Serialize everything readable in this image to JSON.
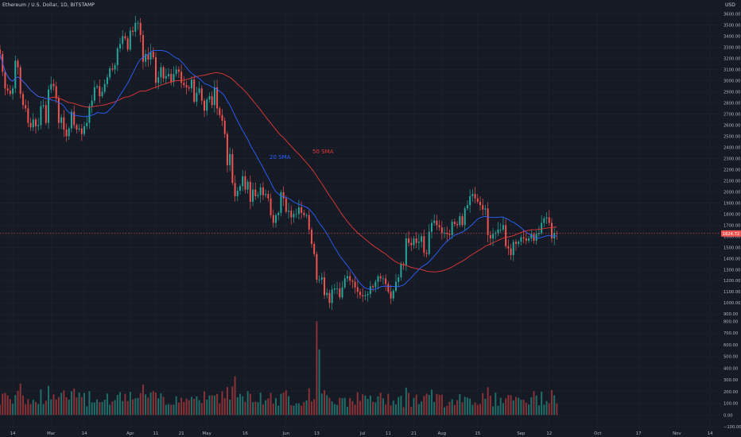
{
  "header": {
    "symbol_title": "Ethereum / U.S. Dollar, 1D, BITSTAMP",
    "currency": "USD"
  },
  "colors": {
    "background": "#161a25",
    "grid": "#1f2330",
    "text": "#b2b5be",
    "up": "#26a69a",
    "down": "#ef5350",
    "volume_up": "#1f6f68",
    "volume_down": "#8a3236",
    "sma20": "#2962ff",
    "sma50": "#e53935"
  },
  "chart_data": {
    "type": "candlestick",
    "price_axis": {
      "ticks": [
        3600,
        3500,
        3400,
        3300,
        3200,
        3100,
        3000,
        2900,
        2800,
        2700,
        2600,
        2500,
        2400,
        2300,
        2200,
        2100,
        2000,
        1900,
        1800,
        1700,
        1600,
        1500,
        1400,
        1300,
        1200,
        1100,
        1000,
        900
      ],
      "tick_labels": [
        "3600.00",
        "3500.00",
        "3400.00",
        "3300.00",
        "3200.00",
        "3100.00",
        "3000.00",
        "2900.00",
        "2800.00",
        "2700.00",
        "2600.00",
        "2500.00",
        "2400.00",
        "2300.00",
        "2200.00",
        "2100.00",
        "2000.00",
        "1900.00",
        "1800.00",
        "1700.00",
        "1600.00",
        "1500.00",
        "1400.00",
        "1300.00",
        "1200.00",
        "1100.00",
        "1000.00",
        "900.00"
      ],
      "range": [
        880,
        3640
      ]
    },
    "volume_axis": {
      "ticks": [
        800,
        700,
        600,
        500,
        400,
        300,
        200,
        100,
        0,
        -100
      ],
      "tick_labels": [
        "800.00",
        "700.00",
        "600.00",
        "500.00",
        "400.00",
        "300.00",
        "200.00",
        "100.00",
        "0.00",
        "−100.00"
      ],
      "range": [
        -120,
        830
      ]
    },
    "time_axis": {
      "labels": [
        {
          "date": "2022-02-14",
          "label": "14"
        },
        {
          "date": "2022-03-01",
          "label": "Mar"
        },
        {
          "date": "2022-03-14",
          "label": "14"
        },
        {
          "date": "2022-04-01",
          "label": "Apr"
        },
        {
          "date": "2022-04-11",
          "label": "11"
        },
        {
          "date": "2022-04-21",
          "label": "21"
        },
        {
          "date": "2022-05-01",
          "label": "May"
        },
        {
          "date": "2022-05-16",
          "label": "16"
        },
        {
          "date": "2022-06-01",
          "label": "Jun"
        },
        {
          "date": "2022-06-13",
          "label": "13"
        },
        {
          "date": "2022-07-01",
          "label": "Jul"
        },
        {
          "date": "2022-07-11",
          "label": "11"
        },
        {
          "date": "2022-07-21",
          "label": "21"
        },
        {
          "date": "2022-08-01",
          "label": "Aug"
        },
        {
          "date": "2022-08-15",
          "label": "15"
        },
        {
          "date": "2022-09-01",
          "label": "Sep"
        },
        {
          "date": "2022-09-12",
          "label": "12"
        },
        {
          "date": "2022-10-01",
          "label": "Oct"
        },
        {
          "date": "2022-10-17",
          "label": "17"
        },
        {
          "date": "2022-11-01",
          "label": "Nov"
        },
        {
          "date": "2022-11-14",
          "label": "14"
        }
      ]
    },
    "close_series": [
      {
        "date": "2022-02-09",
        "close": 3240
      },
      {
        "date": "2022-02-10",
        "close": 3080
      },
      {
        "date": "2022-02-11",
        "close": 2930
      },
      {
        "date": "2022-02-12",
        "close": 2910
      },
      {
        "date": "2022-02-13",
        "close": 2880
      },
      {
        "date": "2022-02-14",
        "close": 2930
      },
      {
        "date": "2022-02-15",
        "close": 3180
      },
      {
        "date": "2022-02-16",
        "close": 3120
      },
      {
        "date": "2022-02-17",
        "close": 2880
      },
      {
        "date": "2022-02-18",
        "close": 2780
      },
      {
        "date": "2022-02-19",
        "close": 2750
      },
      {
        "date": "2022-02-20",
        "close": 2620
      },
      {
        "date": "2022-02-21",
        "close": 2580
      },
      {
        "date": "2022-02-22",
        "close": 2650
      },
      {
        "date": "2022-02-23",
        "close": 2590
      },
      {
        "date": "2022-02-24",
        "close": 2600
      },
      {
        "date": "2022-02-25",
        "close": 2770
      },
      {
        "date": "2022-02-26",
        "close": 2780
      },
      {
        "date": "2022-02-27",
        "close": 2620
      },
      {
        "date": "2022-02-28",
        "close": 2920
      },
      {
        "date": "2022-03-01",
        "close": 2970
      },
      {
        "date": "2022-03-02",
        "close": 2950
      },
      {
        "date": "2022-03-03",
        "close": 2840
      },
      {
        "date": "2022-03-04",
        "close": 2620
      },
      {
        "date": "2022-03-05",
        "close": 2670
      },
      {
        "date": "2022-03-06",
        "close": 2560
      },
      {
        "date": "2022-03-07",
        "close": 2500
      },
      {
        "date": "2022-03-08",
        "close": 2570
      },
      {
        "date": "2022-03-09",
        "close": 2720
      },
      {
        "date": "2022-03-10",
        "close": 2600
      },
      {
        "date": "2022-03-11",
        "close": 2560
      },
      {
        "date": "2022-03-12",
        "close": 2570
      },
      {
        "date": "2022-03-13",
        "close": 2520
      },
      {
        "date": "2022-03-14",
        "close": 2590
      },
      {
        "date": "2022-03-15",
        "close": 2620
      },
      {
        "date": "2022-03-16",
        "close": 2770
      },
      {
        "date": "2022-03-17",
        "close": 2820
      },
      {
        "date": "2022-03-18",
        "close": 2940
      },
      {
        "date": "2022-03-19",
        "close": 2950
      },
      {
        "date": "2022-03-20",
        "close": 2860
      },
      {
        "date": "2022-03-21",
        "close": 2900
      },
      {
        "date": "2022-03-22",
        "close": 2970
      },
      {
        "date": "2022-03-23",
        "close": 3030
      },
      {
        "date": "2022-03-24",
        "close": 3110
      },
      {
        "date": "2022-03-25",
        "close": 3100
      },
      {
        "date": "2022-03-26",
        "close": 3140
      },
      {
        "date": "2022-03-27",
        "close": 3290
      },
      {
        "date": "2022-03-28",
        "close": 3330
      },
      {
        "date": "2022-03-29",
        "close": 3400
      },
      {
        "date": "2022-03-30",
        "close": 3380
      },
      {
        "date": "2022-03-31",
        "close": 3280
      },
      {
        "date": "2022-04-01",
        "close": 3450
      },
      {
        "date": "2022-04-02",
        "close": 3440
      },
      {
        "date": "2022-04-03",
        "close": 3520
      },
      {
        "date": "2022-04-04",
        "close": 3520
      },
      {
        "date": "2022-04-05",
        "close": 3410
      },
      {
        "date": "2022-04-06",
        "close": 3170
      },
      {
        "date": "2022-04-07",
        "close": 3240
      },
      {
        "date": "2022-04-08",
        "close": 3190
      },
      {
        "date": "2022-04-09",
        "close": 3260
      },
      {
        "date": "2022-04-10",
        "close": 3210
      },
      {
        "date": "2022-04-11",
        "close": 2980
      },
      {
        "date": "2022-04-12",
        "close": 3030
      },
      {
        "date": "2022-04-13",
        "close": 3120
      },
      {
        "date": "2022-04-14",
        "close": 3020
      },
      {
        "date": "2022-04-15",
        "close": 3040
      },
      {
        "date": "2022-04-16",
        "close": 3060
      },
      {
        "date": "2022-04-17",
        "close": 2990
      },
      {
        "date": "2022-04-18",
        "close": 3060
      },
      {
        "date": "2022-04-19",
        "close": 3100
      },
      {
        "date": "2022-04-20",
        "close": 3080
      },
      {
        "date": "2022-04-21",
        "close": 2980
      },
      {
        "date": "2022-04-22",
        "close": 2960
      },
      {
        "date": "2022-04-23",
        "close": 2940
      },
      {
        "date": "2022-04-24",
        "close": 2930
      },
      {
        "date": "2022-04-25",
        "close": 3010
      },
      {
        "date": "2022-04-26",
        "close": 2810
      },
      {
        "date": "2022-04-27",
        "close": 2890
      },
      {
        "date": "2022-04-28",
        "close": 2930
      },
      {
        "date": "2022-04-29",
        "close": 2820
      },
      {
        "date": "2022-04-30",
        "close": 2730
      },
      {
        "date": "2022-05-01",
        "close": 2830
      },
      {
        "date": "2022-05-02",
        "close": 2860
      },
      {
        "date": "2022-05-03",
        "close": 2780
      },
      {
        "date": "2022-05-04",
        "close": 2940
      },
      {
        "date": "2022-05-05",
        "close": 2750
      },
      {
        "date": "2022-05-06",
        "close": 2690
      },
      {
        "date": "2022-05-07",
        "close": 2640
      },
      {
        "date": "2022-05-08",
        "close": 2520
      },
      {
        "date": "2022-05-09",
        "close": 2240
      },
      {
        "date": "2022-05-10",
        "close": 2340
      },
      {
        "date": "2022-05-11",
        "close": 2080
      },
      {
        "date": "2022-05-12",
        "close": 1960
      },
      {
        "date": "2022-05-13",
        "close": 2010
      },
      {
        "date": "2022-05-14",
        "close": 2050
      },
      {
        "date": "2022-05-15",
        "close": 2140
      },
      {
        "date": "2022-05-16",
        "close": 2020
      },
      {
        "date": "2022-05-17",
        "close": 2090
      },
      {
        "date": "2022-05-18",
        "close": 1910
      },
      {
        "date": "2022-05-19",
        "close": 2020
      },
      {
        "date": "2022-05-20",
        "close": 1960
      },
      {
        "date": "2022-05-21",
        "close": 1970
      },
      {
        "date": "2022-05-22",
        "close": 2040
      },
      {
        "date": "2022-05-23",
        "close": 1970
      },
      {
        "date": "2022-05-24",
        "close": 1980
      },
      {
        "date": "2022-05-25",
        "close": 1940
      },
      {
        "date": "2022-05-26",
        "close": 1790
      },
      {
        "date": "2022-05-27",
        "close": 1720
      },
      {
        "date": "2022-05-28",
        "close": 1790
      },
      {
        "date": "2022-05-29",
        "close": 1810
      },
      {
        "date": "2022-05-30",
        "close": 1995
      },
      {
        "date": "2022-05-31",
        "close": 1940
      },
      {
        "date": "2022-06-01",
        "close": 1820
      },
      {
        "date": "2022-06-02",
        "close": 1830
      },
      {
        "date": "2022-06-03",
        "close": 1770
      },
      {
        "date": "2022-06-04",
        "close": 1800
      },
      {
        "date": "2022-06-05",
        "close": 1800
      },
      {
        "date": "2022-06-06",
        "close": 1860
      },
      {
        "date": "2022-06-07",
        "close": 1810
      },
      {
        "date": "2022-06-08",
        "close": 1790
      },
      {
        "date": "2022-06-09",
        "close": 1790
      },
      {
        "date": "2022-06-10",
        "close": 1660
      },
      {
        "date": "2022-06-11",
        "close": 1530
      },
      {
        "date": "2022-06-12",
        "close": 1440
      },
      {
        "date": "2022-06-13",
        "close": 1210
      },
      {
        "date": "2022-06-14",
        "close": 1210
      },
      {
        "date": "2022-06-15",
        "close": 1230
      },
      {
        "date": "2022-06-16",
        "close": 1070
      },
      {
        "date": "2022-06-17",
        "close": 1090
      },
      {
        "date": "2022-06-18",
        "close": 1000
      },
      {
        "date": "2022-06-19",
        "close": 1120
      },
      {
        "date": "2022-06-20",
        "close": 1130
      },
      {
        "date": "2022-06-21",
        "close": 1130
      },
      {
        "date": "2022-06-22",
        "close": 1050
      },
      {
        "date": "2022-06-23",
        "close": 1140
      },
      {
        "date": "2022-06-24",
        "close": 1220
      },
      {
        "date": "2022-06-25",
        "close": 1240
      },
      {
        "date": "2022-06-26",
        "close": 1200
      },
      {
        "date": "2022-06-27",
        "close": 1190
      },
      {
        "date": "2022-06-28",
        "close": 1140
      },
      {
        "date": "2022-06-29",
        "close": 1100
      },
      {
        "date": "2022-06-30",
        "close": 1070
      },
      {
        "date": "2022-07-01",
        "close": 1060
      },
      {
        "date": "2022-07-02",
        "close": 1070
      },
      {
        "date": "2022-07-03",
        "close": 1080
      },
      {
        "date": "2022-07-04",
        "close": 1150
      },
      {
        "date": "2022-07-05",
        "close": 1140
      },
      {
        "date": "2022-07-06",
        "close": 1190
      },
      {
        "date": "2022-07-07",
        "close": 1240
      },
      {
        "date": "2022-07-08",
        "close": 1220
      },
      {
        "date": "2022-07-09",
        "close": 1220
      },
      {
        "date": "2022-07-10",
        "close": 1170
      },
      {
        "date": "2022-07-11",
        "close": 1100
      },
      {
        "date": "2022-07-12",
        "close": 1040
      },
      {
        "date": "2022-07-13",
        "close": 1110
      },
      {
        "date": "2022-07-14",
        "close": 1190
      },
      {
        "date": "2022-07-15",
        "close": 1230
      },
      {
        "date": "2022-07-16",
        "close": 1350
      },
      {
        "date": "2022-07-17",
        "close": 1340
      },
      {
        "date": "2022-07-18",
        "close": 1580
      },
      {
        "date": "2022-07-19",
        "close": 1540
      },
      {
        "date": "2022-07-20",
        "close": 1520
      },
      {
        "date": "2022-07-21",
        "close": 1580
      },
      {
        "date": "2022-07-22",
        "close": 1540
      },
      {
        "date": "2022-07-23",
        "close": 1550
      },
      {
        "date": "2022-07-24",
        "close": 1600
      },
      {
        "date": "2022-07-25",
        "close": 1450
      },
      {
        "date": "2022-07-26",
        "close": 1440
      },
      {
        "date": "2022-07-27",
        "close": 1640
      },
      {
        "date": "2022-07-28",
        "close": 1720
      },
      {
        "date": "2022-07-29",
        "close": 1740
      },
      {
        "date": "2022-07-30",
        "close": 1700
      },
      {
        "date": "2022-07-31",
        "close": 1680
      },
      {
        "date": "2022-08-01",
        "close": 1630
      },
      {
        "date": "2022-08-02",
        "close": 1630
      },
      {
        "date": "2022-08-03",
        "close": 1620
      },
      {
        "date": "2022-08-04",
        "close": 1610
      },
      {
        "date": "2022-08-05",
        "close": 1730
      },
      {
        "date": "2022-08-06",
        "close": 1710
      },
      {
        "date": "2022-08-07",
        "close": 1700
      },
      {
        "date": "2022-08-08",
        "close": 1780
      },
      {
        "date": "2022-08-09",
        "close": 1700
      },
      {
        "date": "2022-08-10",
        "close": 1850
      },
      {
        "date": "2022-08-11",
        "close": 1880
      },
      {
        "date": "2022-08-12",
        "close": 1960
      },
      {
        "date": "2022-08-13",
        "close": 1980
      },
      {
        "date": "2022-08-14",
        "close": 1940
      },
      {
        "date": "2022-08-15",
        "close": 1910
      },
      {
        "date": "2022-08-16",
        "close": 1880
      },
      {
        "date": "2022-08-17",
        "close": 1840
      },
      {
        "date": "2022-08-18",
        "close": 1850
      },
      {
        "date": "2022-08-19",
        "close": 1610
      },
      {
        "date": "2022-08-20",
        "close": 1580
      },
      {
        "date": "2022-08-21",
        "close": 1620
      },
      {
        "date": "2022-08-22",
        "close": 1630
      },
      {
        "date": "2022-08-23",
        "close": 1660
      },
      {
        "date": "2022-08-24",
        "close": 1660
      },
      {
        "date": "2022-08-25",
        "close": 1700
      },
      {
        "date": "2022-08-26",
        "close": 1510
      },
      {
        "date": "2022-08-27",
        "close": 1490
      },
      {
        "date": "2022-08-28",
        "close": 1430
      },
      {
        "date": "2022-08-29",
        "close": 1550
      },
      {
        "date": "2022-08-30",
        "close": 1530
      },
      {
        "date": "2022-08-31",
        "close": 1550
      },
      {
        "date": "2022-09-01",
        "close": 1590
      },
      {
        "date": "2022-09-02",
        "close": 1580
      },
      {
        "date": "2022-09-03",
        "close": 1560
      },
      {
        "date": "2022-09-04",
        "close": 1580
      },
      {
        "date": "2022-09-05",
        "close": 1620
      },
      {
        "date": "2022-09-06",
        "close": 1560
      },
      {
        "date": "2022-09-07",
        "close": 1620
      },
      {
        "date": "2022-09-08",
        "close": 1630
      },
      {
        "date": "2022-09-09",
        "close": 1720
      },
      {
        "date": "2022-09-10",
        "close": 1760
      },
      {
        "date": "2022-09-11",
        "close": 1770
      },
      {
        "date": "2022-09-12",
        "close": 1720
      },
      {
        "date": "2022-09-13",
        "close": 1580
      },
      {
        "date": "2022-09-14",
        "close": 1630
      },
      {
        "date": "2022-09-15",
        "close": 1624
      }
    ],
    "volume_bars_note": "",
    "overlays": [
      {
        "name": "20 SMA",
        "color": "#2962ff"
      },
      {
        "name": "50 SMA",
        "color": "#e53935"
      }
    ],
    "last_price": {
      "value": 1624.72,
      "label": "1624.72"
    },
    "xlim": [
      "2022-02-09",
      "2022-11-18"
    ]
  }
}
